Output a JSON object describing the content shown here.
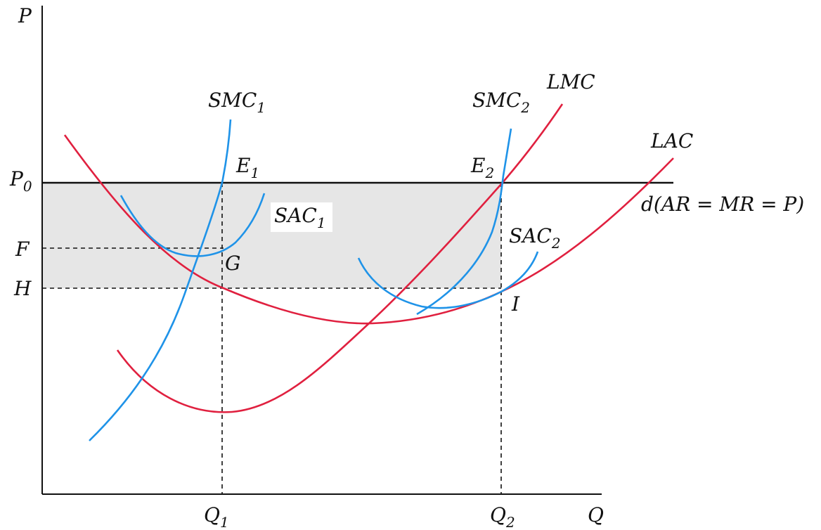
{
  "axes": {
    "y_label": "P",
    "x_label": "Q"
  },
  "price_levels": {
    "p0": {
      "main": "P",
      "sub": "0"
    },
    "f": "F",
    "h": "H"
  },
  "quantities": {
    "q1": {
      "main": "Q",
      "sub": "1"
    },
    "q2": {
      "main": "Q",
      "sub": "2"
    }
  },
  "curves": {
    "smc1": {
      "main": "SMC",
      "sub": "1"
    },
    "sac1": {
      "main": "SAC",
      "sub": "1"
    },
    "smc2": {
      "main": "SMC",
      "sub": "2"
    },
    "sac2": {
      "main": "SAC",
      "sub": "2"
    },
    "lmc": "LMC",
    "lac": "LAC",
    "demand": "d(AR = MR = P)"
  },
  "points": {
    "e1": {
      "main": "E",
      "sub": "1"
    },
    "e2": {
      "main": "E",
      "sub": "2"
    },
    "g": "G",
    "i": "I"
  },
  "colors": {
    "long_run": "#e0203f",
    "short_run": "#1f93e8",
    "profit_area": "#e6e6e6"
  }
}
